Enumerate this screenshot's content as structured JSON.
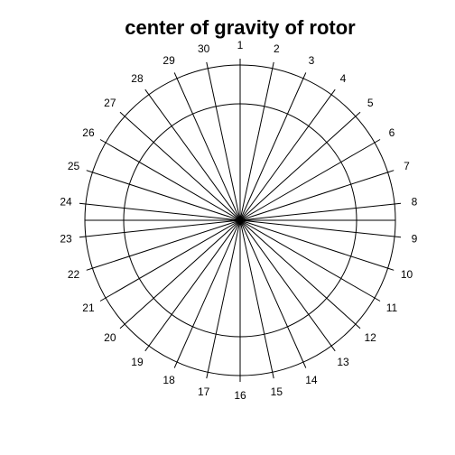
{
  "chart_data": {
    "type": "radial",
    "title": "center of gravity of rotor",
    "spokes": 30,
    "tick_labels": [
      "1",
      "2",
      "3",
      "4",
      "5",
      "6",
      "7",
      "8",
      "9",
      "10",
      "11",
      "12",
      "13",
      "14",
      "15",
      "16",
      "17",
      "18",
      "19",
      "20",
      "21",
      "22",
      "23",
      "24",
      "25",
      "26",
      "27",
      "28",
      "29",
      "30"
    ],
    "rings": 2,
    "line_color": "#000000",
    "background": "#ffffff"
  }
}
